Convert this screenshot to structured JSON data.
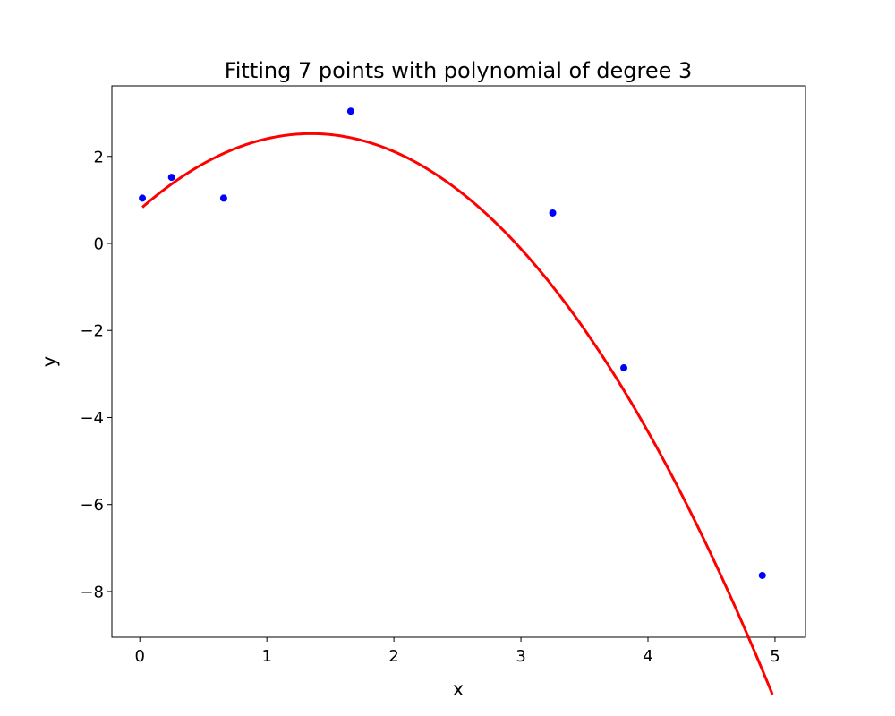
{
  "chart_data": {
    "type": "scatter",
    "title": "Fitting 7 points with polynomial of degree 3",
    "xlabel": "x",
    "ylabel": "y",
    "xlim": [
      -0.22,
      5.24
    ],
    "ylim": [
      -9.05,
      3.62
    ],
    "grid": false,
    "x_ticks": [
      0,
      1,
      2,
      3,
      4,
      5
    ],
    "x_tick_labels": [
      "0",
      "1",
      "2",
      "3",
      "4",
      "5"
    ],
    "y_ticks": [
      -8,
      -6,
      -4,
      -2,
      0,
      2
    ],
    "y_tick_labels": [
      "−8",
      "−6",
      "−4",
      "−2",
      "0",
      "2"
    ],
    "series": [
      {
        "kind": "scatter",
        "color": "#0000ff",
        "points": [
          {
            "x": 0.02,
            "y": 1.04
          },
          {
            "x": 0.25,
            "y": 1.52
          },
          {
            "x": 0.66,
            "y": 1.04
          },
          {
            "x": 1.66,
            "y": 3.04
          },
          {
            "x": 3.25,
            "y": 0.7
          },
          {
            "x": 3.81,
            "y": -2.86
          },
          {
            "x": 4.9,
            "y": -7.63
          }
        ]
      },
      {
        "kind": "line",
        "color": "#ff0000",
        "x_range": [
          0.02,
          4.98
        ],
        "coefficients": [
          0.78,
          2.58,
          -0.95,
          -0.0035
        ]
      }
    ]
  }
}
